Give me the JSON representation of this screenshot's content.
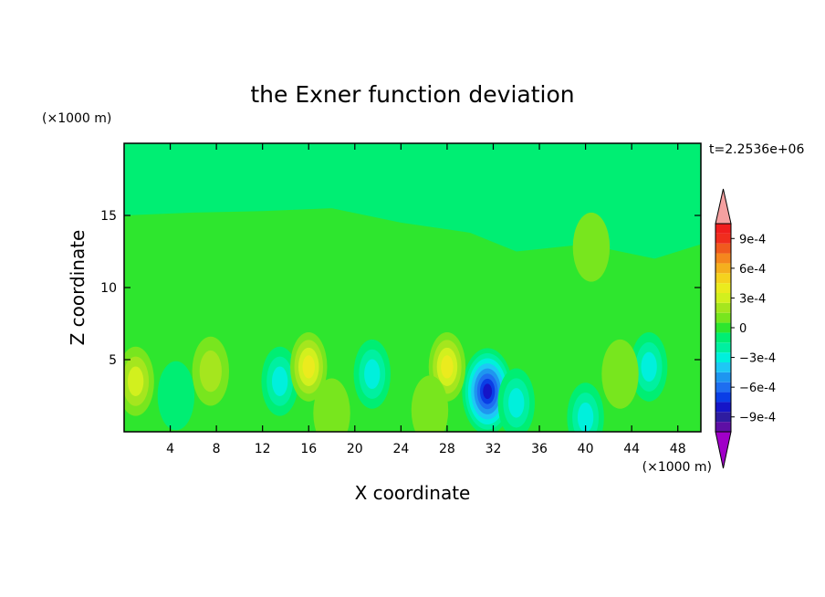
{
  "chart_data": {
    "type": "heatmap",
    "title": "the Exner function deviation",
    "xlabel": "X coordinate",
    "ylabel": "Z coordinate",
    "x_unit": "(×1000 m)",
    "y_unit": "(×1000 m)",
    "time_label": "t=2.2536e+06",
    "xlim": [
      0,
      50
    ],
    "ylim": [
      0,
      20
    ],
    "x_ticks": [
      4,
      8,
      12,
      16,
      20,
      24,
      28,
      32,
      36,
      40,
      44,
      48
    ],
    "y_ticks": [
      5,
      10,
      15
    ],
    "colorbar": {
      "levels": [
        -0.0011,
        -0.001,
        -0.0009,
        -0.0008,
        -0.0007,
        -0.0006,
        -0.0005,
        -0.0004,
        -0.0003,
        -0.0002,
        -0.0001,
        0,
        0.0001,
        0.0002,
        0.0003,
        0.0004,
        0.0005,
        0.0006,
        0.0007,
        0.0008,
        0.0009,
        0.001,
        0.0011
      ],
      "tick_labels": [
        "9e-4",
        "6e-4",
        "3e-4",
        "0",
        "−3e-4",
        "−6e-4",
        "−9e-4"
      ],
      "colors": [
        "#a000c8",
        "#5e0fa5",
        "#2e1ca0",
        "#1515c8",
        "#0a3ee6",
        "#1e6ef0",
        "#1e96f0",
        "#1ec8f5",
        "#00f0dc",
        "#00f0a0",
        "#00ee73",
        "#2ee62e",
        "#78e61e",
        "#a5e61e",
        "#d2f01e",
        "#ebeb1e",
        "#f5d21e",
        "#f5af1e",
        "#f5871e",
        "#f05a1e",
        "#f02d1e",
        "#f01e1e",
        "#f5a0a0"
      ]
    },
    "field_features": [
      {
        "x": 31.5,
        "z": 2.8,
        "value": -0.00075
      },
      {
        "x": 34,
        "z": 2,
        "value": -0.0003
      },
      {
        "x": 13.5,
        "z": 3.5,
        "value": -0.00025
      },
      {
        "x": 21.5,
        "z": 4,
        "value": -0.00025
      },
      {
        "x": 45.5,
        "z": 4.5,
        "value": -0.00025
      },
      {
        "x": 40,
        "z": 1,
        "value": -0.0003
      },
      {
        "x": 4.5,
        "z": 2.5,
        "value": -0.00015
      },
      {
        "x": 1,
        "z": 3.5,
        "value": 0.00028
      },
      {
        "x": 16,
        "z": 4.5,
        "value": 0.00035
      },
      {
        "x": 28,
        "z": 4.5,
        "value": 0.00035
      },
      {
        "x": 7.5,
        "z": 4.2,
        "value": 0.0002
      },
      {
        "x": 43,
        "z": 4,
        "value": 0.00012
      },
      {
        "x": 18,
        "z": 1.3,
        "value": 0.00015
      },
      {
        "x": 26.5,
        "z": 1.5,
        "value": 0.0001
      },
      {
        "x": 40.5,
        "z": 12.8,
        "value": 0.00012
      }
    ]
  }
}
